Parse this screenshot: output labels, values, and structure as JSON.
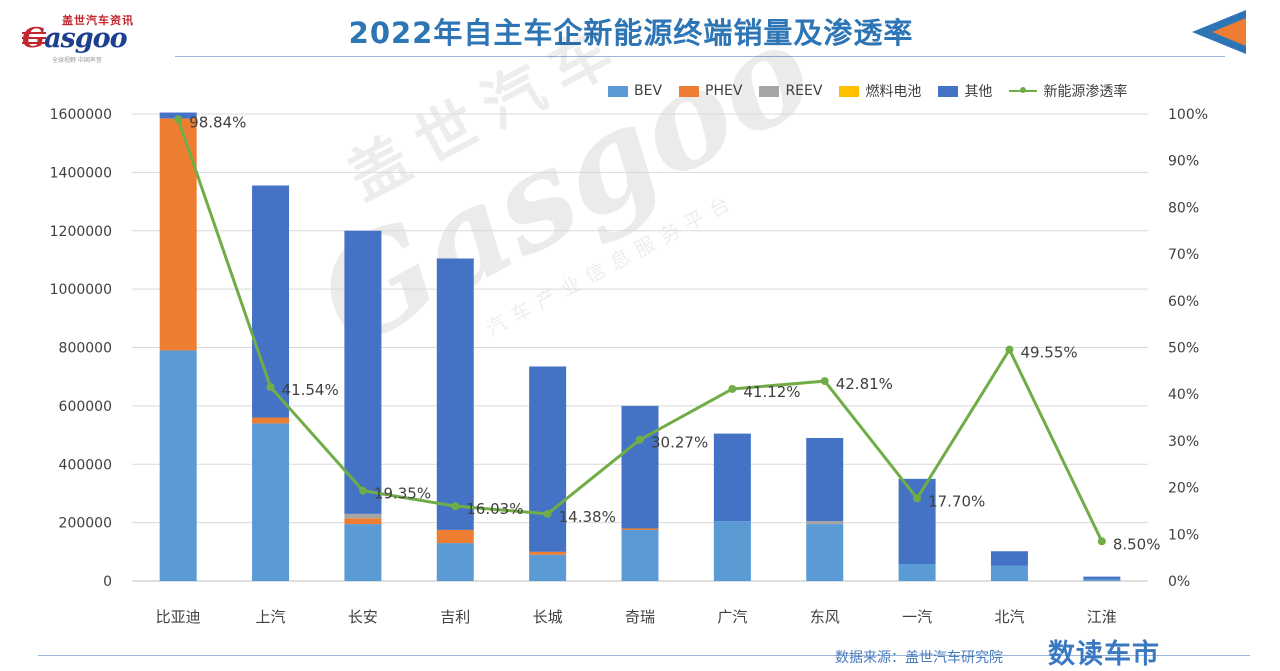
{
  "header": {
    "title": "2022年自主车企新能源终端销量及渗透率",
    "logo": {
      "cn": "盖世汽车资讯",
      "en_prefix": "G",
      "en_rest": "asgoo",
      "tagline": "全球视野 中国声音"
    }
  },
  "watermark": {
    "cn": "盖世汽车",
    "en": "Gasgoo",
    "sub": "汽车产业信息服务平台"
  },
  "footer": {
    "source": "数据来源：盖世汽车研究院",
    "brand": "数读车市"
  },
  "colors": {
    "BEV": "#5b9bd5",
    "PHEV": "#ed7d31",
    "REEV": "#a5a5a5",
    "燃料电池": "#ffc000",
    "其他": "#4472c4",
    "line": "#70ad47",
    "title": "#2e75b6"
  },
  "chart_data": {
    "type": "bar",
    "stacked": true,
    "categories": [
      "比亚迪",
      "上汽",
      "长安",
      "吉利",
      "长城",
      "奇瑞",
      "广汽",
      "东风",
      "一汽",
      "北汽",
      "江淮"
    ],
    "series": [
      {
        "name": "BEV",
        "values": [
          790000,
          540000,
          195000,
          130000,
          90000,
          175000,
          205000,
          195000,
          58000,
          52000,
          7000
        ]
      },
      {
        "name": "PHEV",
        "values": [
          795000,
          20000,
          20000,
          45000,
          10000,
          5000,
          0,
          0,
          0,
          0,
          0
        ]
      },
      {
        "name": "REEV",
        "values": [
          0,
          0,
          15000,
          0,
          0,
          0,
          0,
          10000,
          0,
          0,
          0
        ]
      },
      {
        "name": "燃料电池",
        "values": [
          0,
          0,
          0,
          0,
          0,
          0,
          0,
          0,
          0,
          0,
          0
        ]
      },
      {
        "name": "其他",
        "values": [
          20000,
          795000,
          970000,
          930000,
          635000,
          420000,
          300000,
          285000,
          292000,
          50000,
          8000
        ]
      }
    ],
    "line": {
      "name": "新能源渗透率",
      "values": [
        98.84,
        41.54,
        19.35,
        16.03,
        14.38,
        30.27,
        41.12,
        42.81,
        17.7,
        49.55,
        8.5
      ],
      "labels": [
        "98.84%",
        "41.54%",
        "19.35%",
        "16.03%",
        "14.38%",
        "30.27%",
        "41.12%",
        "42.81%",
        "17.70%",
        "49.55%",
        "8.50%"
      ]
    },
    "ylim": [
      0,
      1600000
    ],
    "y_ticks": [
      "0",
      "200000",
      "400000",
      "600000",
      "800000",
      "1000000",
      "1200000",
      "1400000",
      "1600000"
    ],
    "y2lim": [
      0,
      100
    ],
    "y2_ticks": [
      "0%",
      "10%",
      "20%",
      "30%",
      "40%",
      "50%",
      "60%",
      "70%",
      "80%",
      "90%",
      "100%"
    ],
    "grid": true,
    "legend_position": "top-right"
  }
}
